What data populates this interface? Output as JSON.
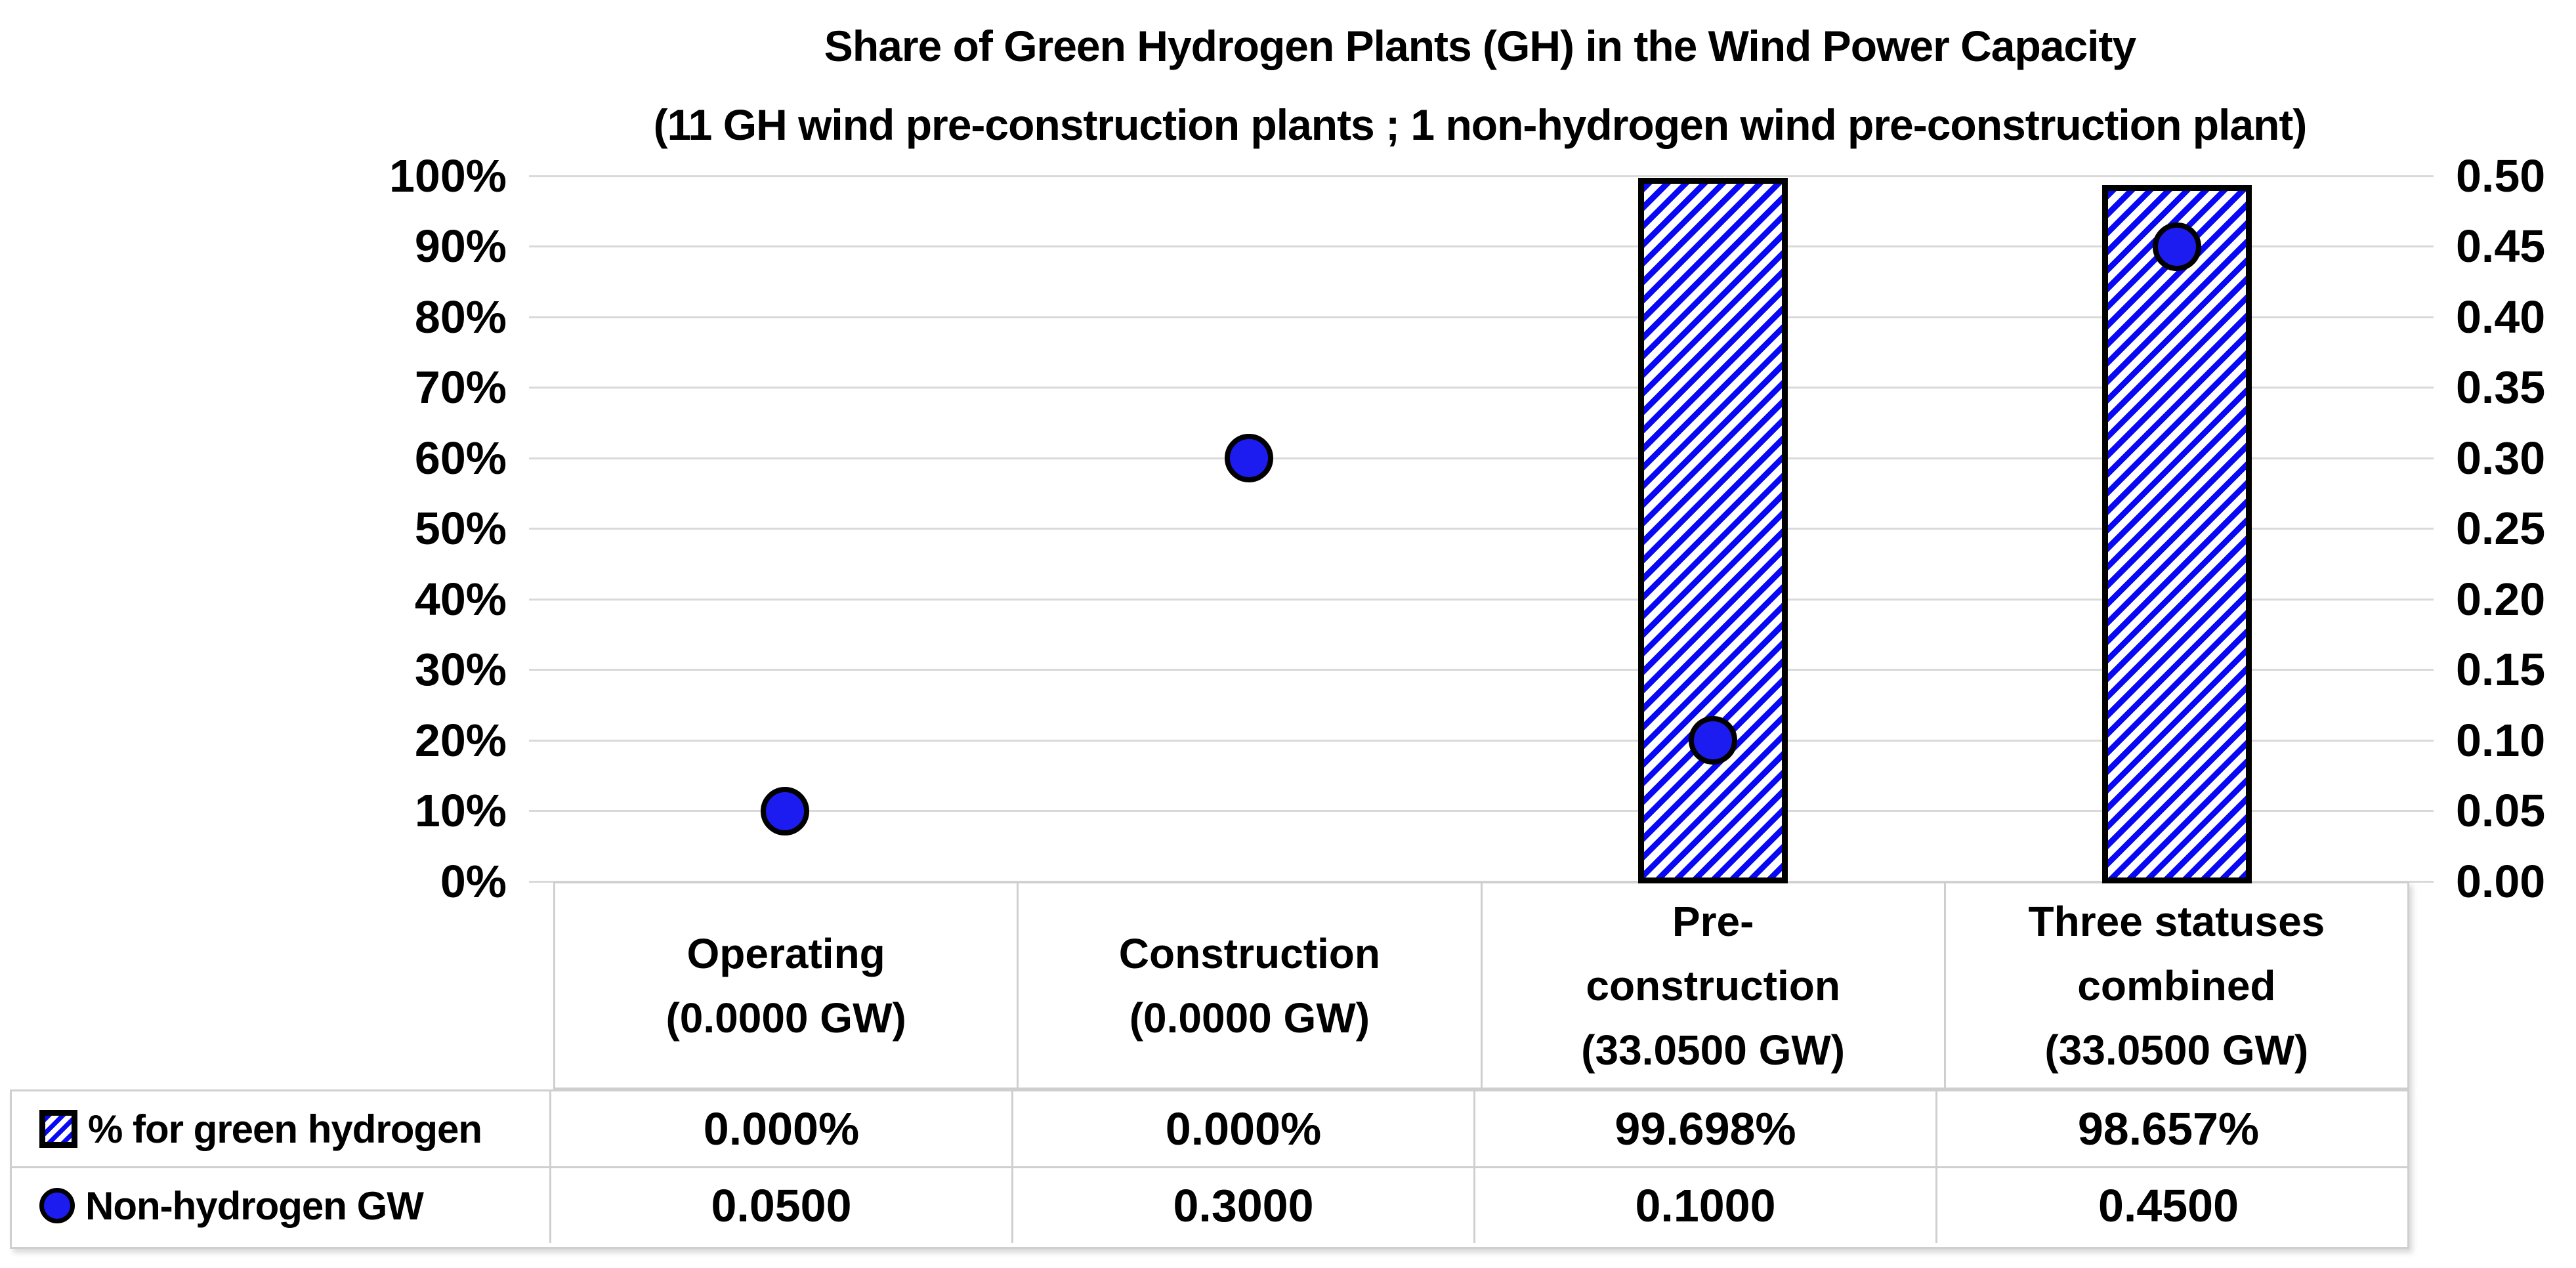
{
  "chart_data": {
    "type": "combo-bar-scatter",
    "title": "Share of Green Hydrogen Plants (GH) in the Wind Power Capacity",
    "subtitle": "(11 GH wind pre-construction plants ; 1 non-hydrogen wind pre-construction plant)",
    "categories": [
      "Operating\n(0.0000 GW)",
      "Construction\n(0.0000 GW)",
      "Pre-\nconstruction\n(33.0500 GW)",
      "Three statuses\ncombined\n(33.0500 GW)"
    ],
    "series": [
      {
        "name": "% for green hydrogen",
        "type": "bar",
        "axis": "left",
        "marker": "blue-diagonal-hatch-bar-black-outline",
        "values": [
          0.0,
          0.0,
          99.698,
          98.657
        ],
        "labels": [
          "0.000%",
          "0.000%",
          "99.698%",
          "98.657%"
        ]
      },
      {
        "name": "Non-hydrogen GW",
        "type": "scatter",
        "axis": "right",
        "marker": "blue-circle-black-outline",
        "values": [
          0.05,
          0.3,
          0.1,
          0.45
        ],
        "labels": [
          "0.0500",
          "0.3000",
          "0.1000",
          "0.4500"
        ]
      }
    ],
    "left_axis": {
      "min": "0%",
      "max": "100%",
      "ticks": [
        "100%",
        "90%",
        "80%",
        "70%",
        "60%",
        "50%",
        "40%",
        "30%",
        "20%",
        "10%",
        "0%"
      ]
    },
    "right_axis": {
      "min": "0.00",
      "max": "0.50",
      "ticks": [
        "0.50",
        "0.45",
        "0.40",
        "0.35",
        "0.30",
        "0.25",
        "0.20",
        "0.15",
        "0.10",
        "0.05",
        "0.00"
      ]
    },
    "grid": "horizontal-light-gray",
    "legend_position": "table-row-headers",
    "colors": {
      "blue": "#1C1CF0",
      "outline": "#000000",
      "gridline": "#D9D9D9",
      "table_border": "#CFCFCF",
      "text": "#000000",
      "background": "#FFFFFF"
    }
  }
}
